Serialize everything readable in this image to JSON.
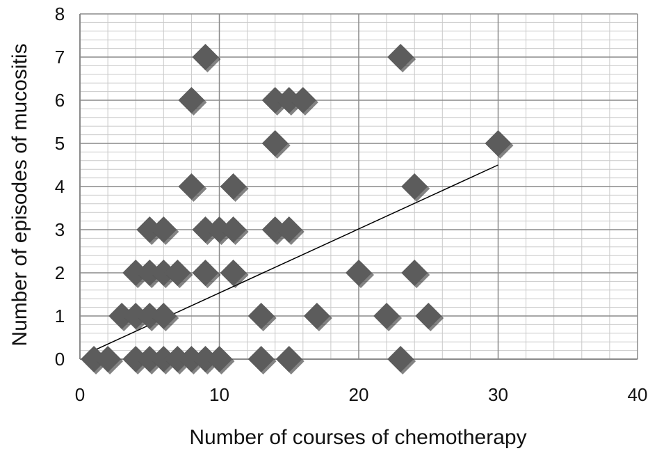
{
  "chart_data": {
    "type": "scatter",
    "title": "",
    "xlabel": "Number of courses of chemotherapy",
    "ylabel": "Number of episodes of mucositis",
    "xlim": [
      0,
      40
    ],
    "ylim": [
      0,
      8
    ],
    "x_ticks": [
      0,
      10,
      20,
      30,
      40
    ],
    "y_ticks": [
      0,
      1,
      2,
      3,
      4,
      5,
      6,
      7,
      8
    ],
    "x_minor_step": 2,
    "y_minor_step": 0.2,
    "grid": true,
    "legend": "none",
    "marker": "diamond",
    "colors": {
      "marker": "#5c5c5c",
      "marker_shadow": "#1e1e1e",
      "trendline": "#000000",
      "major_grid": "#8a8a8a",
      "minor_grid": "#c9c9c9",
      "axis": "#8a8a8a"
    },
    "series": [
      {
        "points": [
          [
            1,
            0
          ],
          [
            2,
            0
          ],
          [
            4,
            0
          ],
          [
            5,
            0
          ],
          [
            6,
            0
          ],
          [
            7,
            0
          ],
          [
            8,
            0
          ],
          [
            9,
            0
          ],
          [
            10,
            0
          ],
          [
            13,
            0
          ],
          [
            15,
            0
          ],
          [
            23,
            0
          ],
          [
            3,
            1
          ],
          [
            4,
            1
          ],
          [
            5,
            1
          ],
          [
            6,
            1
          ],
          [
            13,
            1
          ],
          [
            17,
            1
          ],
          [
            22,
            1
          ],
          [
            25,
            1
          ],
          [
            4,
            2
          ],
          [
            5,
            2
          ],
          [
            6,
            2
          ],
          [
            7,
            2
          ],
          [
            9,
            2
          ],
          [
            11,
            2
          ],
          [
            20,
            2
          ],
          [
            24,
            2
          ],
          [
            5,
            3
          ],
          [
            6,
            3
          ],
          [
            9,
            3
          ],
          [
            10,
            3
          ],
          [
            11,
            3
          ],
          [
            14,
            3
          ],
          [
            15,
            3
          ],
          [
            8,
            4
          ],
          [
            11,
            4
          ],
          [
            24,
            4
          ],
          [
            14,
            5
          ],
          [
            30,
            5
          ],
          [
            8,
            6
          ],
          [
            14,
            6
          ],
          [
            15,
            6
          ],
          [
            16,
            6
          ],
          [
            9,
            7
          ],
          [
            23,
            7
          ]
        ]
      }
    ],
    "trendline": {
      "x": [
        1,
        30
      ],
      "y": [
        0.2,
        4.5
      ]
    }
  }
}
